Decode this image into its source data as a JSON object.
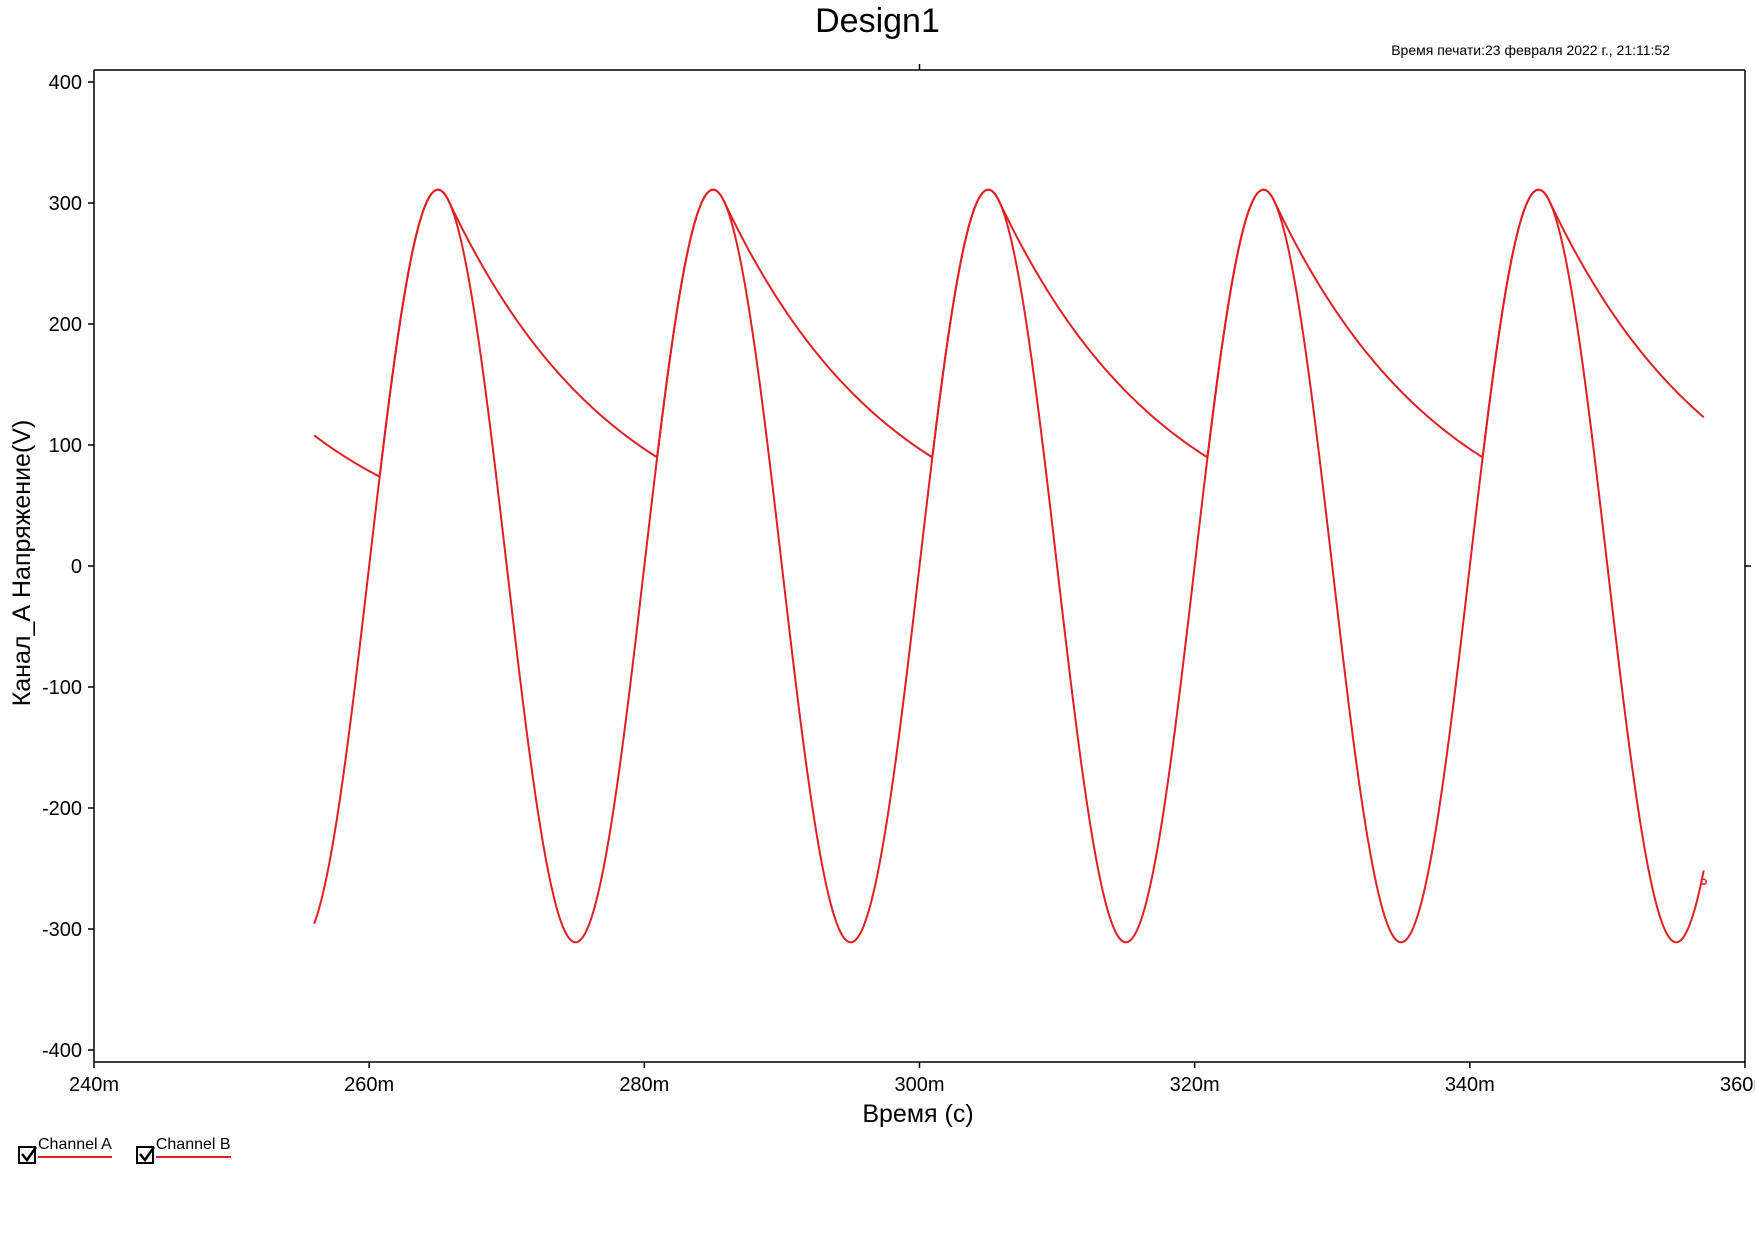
{
  "chart_data": {
    "type": "line",
    "title": "Design1",
    "print_time": "Время печати:23 февраля 2022 г., 21:11:52",
    "xlabel": "Время (с)",
    "ylabel": "Канал_А Напряжение(V)",
    "xlim": [
      0.24,
      0.36
    ],
    "ylim": [
      -400,
      400
    ],
    "x_ticks": [
      "240m",
      "260m",
      "280m",
      "300m",
      "320m",
      "340m",
      "360m"
    ],
    "x_tick_values": [
      0.24,
      0.26,
      0.28,
      0.3,
      0.32,
      0.34,
      0.36
    ],
    "y_ticks": [
      "400",
      "300",
      "200",
      "100",
      "0",
      "-100",
      "-200",
      "-300",
      "-400"
    ],
    "y_tick_values": [
      400,
      300,
      200,
      100,
      0,
      -100,
      -200,
      -300,
      -400
    ],
    "grid": false,
    "line_color": "#e02020",
    "series": [
      {
        "name": "Channel A",
        "description": "sine wave 311 V amplitude, 50 Hz",
        "x": [
          0.256,
          0.2585,
          0.261,
          0.263,
          0.265,
          0.267,
          0.269,
          0.271,
          0.273,
          0.275,
          0.277,
          0.279,
          0.281,
          0.283,
          0.285,
          0.287,
          0.289,
          0.291,
          0.293,
          0.295,
          0.297,
          0.299,
          0.301,
          0.303,
          0.305,
          0.307,
          0.309,
          0.311,
          0.313,
          0.315,
          0.317,
          0.319,
          0.321,
          0.323,
          0.325,
          0.327,
          0.329,
          0.331,
          0.333,
          0.335,
          0.337,
          0.339,
          0.341,
          0.343,
          0.345,
          0.347,
          0.349,
          0.351,
          0.353,
          0.355,
          0.357
        ],
        "values": [
          -296,
          -183,
          68,
          251,
          311,
          251,
          96,
          -96,
          -251,
          -311,
          -251,
          -96,
          96,
          251,
          311,
          251,
          96,
          -96,
          -251,
          -311,
          -251,
          -96,
          96,
          251,
          311,
          251,
          96,
          -96,
          -251,
          -311,
          -251,
          -96,
          96,
          251,
          311,
          251,
          96,
          -96,
          -251,
          -311,
          -251,
          -96,
          96,
          251,
          311,
          251,
          96,
          -96,
          -251,
          -311,
          -261
        ]
      },
      {
        "name": "Channel B",
        "description": "half-wave rectified with capacitor decay",
        "x": [
          0.256,
          0.261,
          0.262,
          0.263,
          0.264,
          0.265,
          0.2665,
          0.268,
          0.271,
          0.274,
          0.277,
          0.2808,
          0.282,
          0.283,
          0.284,
          0.285,
          0.2865,
          0.288,
          0.291,
          0.294,
          0.297,
          0.3008,
          0.302,
          0.303,
          0.304,
          0.305,
          0.3065,
          0.308,
          0.311,
          0.314,
          0.317,
          0.3208,
          0.322,
          0.323,
          0.324,
          0.325,
          0.3265,
          0.328,
          0.331,
          0.334,
          0.337,
          0.3408,
          0.342,
          0.343,
          0.344,
          0.345,
          0.3465,
          0.348,
          0.351,
          0.354,
          0.357
        ],
        "values": [
          108,
          68,
          160,
          251,
          296,
          311,
          290,
          240,
          170,
          118,
          90,
          68,
          160,
          251,
          296,
          311,
          290,
          240,
          170,
          118,
          90,
          68,
          160,
          251,
          296,
          311,
          290,
          240,
          170,
          118,
          90,
          68,
          160,
          251,
          296,
          311,
          290,
          240,
          170,
          118,
          90,
          68,
          160,
          251,
          296,
          311,
          290,
          240,
          170,
          138,
          100
        ]
      }
    ]
  },
  "legend": {
    "items": [
      {
        "label": "Channel A",
        "checked": true
      },
      {
        "label": "Channel B",
        "checked": true
      }
    ]
  }
}
